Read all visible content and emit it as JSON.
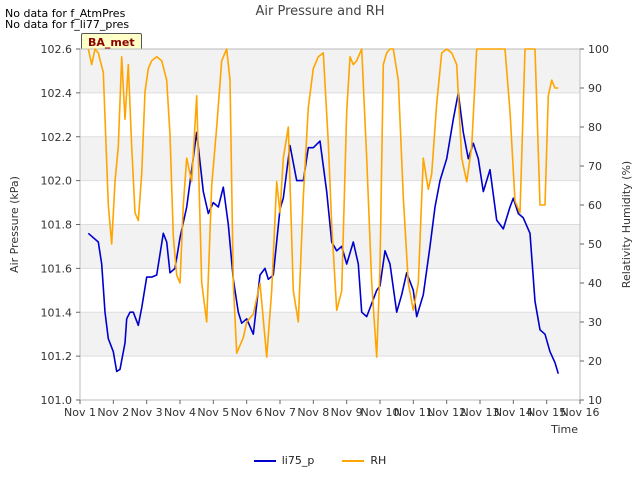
{
  "notices": [
    "No data for f_AtmPres",
    "No data for f_li77_pres"
  ],
  "badge": "BA_met",
  "chart_data": {
    "type": "line",
    "title": "Air Pressure and RH",
    "xlabel": "Time",
    "ylabel": "Air Pressure (kPa)",
    "y2label": "Relativity Humidity (%)",
    "xticks": [
      "Nov 1",
      "Nov 2",
      "Nov 3",
      "Nov 4",
      "Nov 5",
      "Nov 6",
      "Nov 7",
      "Nov 8",
      "Nov 9",
      "Nov 10",
      "Nov 11",
      "Nov 12",
      "Nov 13",
      "Nov 14",
      "Nov 15",
      "Nov 16"
    ],
    "xlim": [
      1,
      16
    ],
    "ylim": [
      101.0,
      102.6
    ],
    "yticks": [
      "101.0",
      "101.2",
      "101.4",
      "101.6",
      "101.8",
      "102.0",
      "102.2",
      "102.4",
      "102.6"
    ],
    "y2lim": [
      10,
      100
    ],
    "y2ticks": [
      "10",
      "20",
      "30",
      "40",
      "50",
      "60",
      "70",
      "80",
      "90",
      "100"
    ],
    "grid": "horizontal bands",
    "legend": "bottom-center",
    "series": [
      {
        "name": "li75_p",
        "color": "#0000cc",
        "axis": "left",
        "x": [
          1.25,
          1.4,
          1.55,
          1.65,
          1.75,
          1.85,
          2.0,
          2.1,
          2.2,
          2.35,
          2.4,
          2.5,
          2.6,
          2.75,
          2.85,
          3.0,
          3.15,
          3.3,
          3.5,
          3.6,
          3.7,
          3.85,
          4.0,
          4.2,
          4.35,
          4.5,
          4.7,
          4.85,
          5.0,
          5.15,
          5.3,
          5.45,
          5.6,
          5.75,
          5.85,
          6.0,
          6.2,
          6.4,
          6.55,
          6.65,
          6.8,
          7.0,
          7.1,
          7.3,
          7.5,
          7.7,
          7.85,
          8.0,
          8.2,
          8.4,
          8.55,
          8.7,
          8.85,
          9.0,
          9.2,
          9.35,
          9.45,
          9.6,
          9.75,
          9.9,
          10.0,
          10.15,
          10.3,
          10.5,
          10.65,
          10.8,
          11.0,
          11.1,
          11.3,
          11.5,
          11.65,
          11.8,
          12.0,
          12.2,
          12.35,
          12.5,
          12.65,
          12.8,
          12.95,
          13.1,
          13.3,
          13.5,
          13.7,
          13.9,
          14.0,
          14.15,
          14.3,
          14.5,
          14.65,
          14.8,
          14.95,
          15.1,
          15.25,
          15.35
        ],
        "values": [
          101.76,
          101.74,
          101.72,
          101.62,
          101.4,
          101.28,
          101.22,
          101.13,
          101.14,
          101.26,
          101.37,
          101.4,
          101.4,
          101.34,
          101.42,
          101.56,
          101.56,
          101.57,
          101.76,
          101.72,
          101.58,
          101.6,
          101.74,
          101.88,
          102.05,
          102.22,
          101.95,
          101.85,
          101.9,
          101.88,
          101.97,
          101.8,
          101.55,
          101.4,
          101.35,
          101.37,
          101.3,
          101.57,
          101.6,
          101.55,
          101.57,
          101.87,
          101.92,
          102.16,
          102.0,
          102.0,
          102.15,
          102.15,
          102.18,
          101.95,
          101.72,
          101.68,
          101.7,
          101.62,
          101.72,
          101.62,
          101.4,
          101.38,
          101.44,
          101.5,
          101.52,
          101.68,
          101.62,
          101.4,
          101.48,
          101.58,
          101.5,
          101.38,
          101.48,
          101.7,
          101.88,
          102.0,
          102.1,
          102.28,
          102.4,
          102.22,
          102.1,
          102.17,
          102.1,
          101.95,
          102.05,
          101.82,
          101.78,
          101.88,
          101.92,
          101.85,
          101.83,
          101.76,
          101.45,
          101.32,
          101.3,
          101.22,
          101.17,
          101.12
        ]
      },
      {
        "name": "RH",
        "color": "#ffa500",
        "axis": "right",
        "x": [
          1.25,
          1.35,
          1.45,
          1.55,
          1.7,
          1.85,
          1.95,
          2.05,
          2.15,
          2.25,
          2.35,
          2.45,
          2.55,
          2.65,
          2.75,
          2.85,
          2.95,
          3.05,
          3.15,
          3.3,
          3.45,
          3.6,
          3.7,
          3.8,
          3.9,
          4.0,
          4.1,
          4.2,
          4.35,
          4.5,
          4.65,
          4.8,
          4.95,
          5.1,
          5.25,
          5.4,
          5.5,
          5.6,
          5.7,
          5.8,
          5.9,
          6.0,
          6.2,
          6.4,
          6.6,
          6.75,
          6.9,
          7.0,
          7.1,
          7.25,
          7.4,
          7.55,
          7.7,
          7.85,
          8.0,
          8.15,
          8.3,
          8.45,
          8.55,
          8.7,
          8.85,
          9.0,
          9.1,
          9.2,
          9.3,
          9.45,
          9.6,
          9.75,
          9.9,
          10.0,
          10.1,
          10.2,
          10.3,
          10.4,
          10.55,
          10.7,
          10.85,
          11.0,
          11.15,
          11.3,
          11.45,
          11.55,
          11.7,
          11.85,
          12.0,
          12.15,
          12.3,
          12.45,
          12.6,
          12.75,
          12.9,
          13.05,
          13.15,
          13.3,
          13.45,
          13.6,
          13.75,
          13.9,
          14.05,
          14.2,
          14.35,
          14.5,
          14.65,
          14.8,
          14.95,
          15.05,
          15.15,
          15.25,
          15.35
        ],
        "values": [
          100,
          96,
          100,
          99,
          94,
          60,
          50,
          66,
          75,
          98,
          82,
          96,
          75,
          58,
          56,
          68,
          89,
          95,
          97,
          98,
          97,
          92,
          78,
          52,
          42,
          40,
          60,
          72,
          66,
          88,
          40,
          30,
          65,
          80,
          97,
          100,
          92,
          40,
          22,
          24,
          26,
          30,
          32,
          40,
          21,
          38,
          66,
          58,
          72,
          80,
          38,
          30,
          62,
          85,
          95,
          98,
          99,
          76,
          55,
          33,
          38,
          84,
          98,
          96,
          97,
          100,
          72,
          40,
          21,
          44,
          96,
          99,
          100,
          100,
          92,
          62,
          40,
          33,
          40,
          72,
          64,
          68,
          86,
          99,
          100,
          99,
          96,
          72,
          66,
          75,
          100,
          100,
          100,
          100,
          100,
          100,
          100,
          84,
          61,
          58,
          100,
          100,
          100,
          60,
          60,
          88,
          92,
          90,
          90
        ]
      }
    ]
  }
}
